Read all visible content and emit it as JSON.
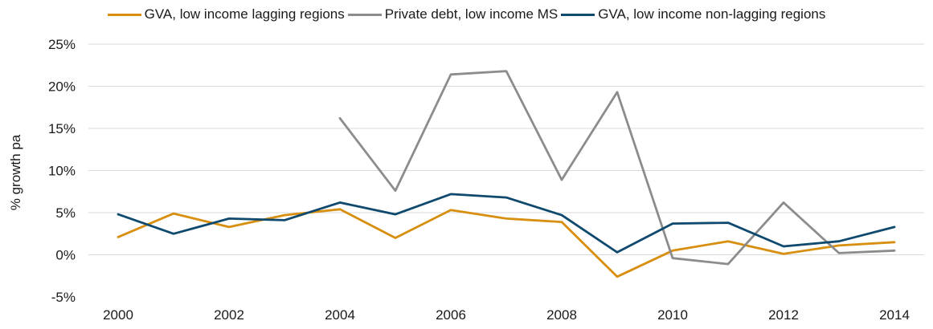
{
  "chart_data": {
    "type": "line",
    "title": "",
    "xlabel": "",
    "ylabel": "% growth pa",
    "x": [
      2000,
      2001,
      2002,
      2003,
      2004,
      2005,
      2006,
      2007,
      2008,
      2009,
      2010,
      2011,
      2012,
      2013,
      2014
    ],
    "x_tick_labels": [
      "2000",
      "2002",
      "2004",
      "2006",
      "2008",
      "2010",
      "2012",
      "2014"
    ],
    "x_tick_values": [
      2000,
      2002,
      2004,
      2006,
      2008,
      2010,
      2012,
      2014
    ],
    "y_tick_labels": [
      "25%",
      "20%",
      "15%",
      "10%",
      "5%",
      "0%",
      "-5%"
    ],
    "y_tick_values": [
      25,
      20,
      15,
      10,
      5,
      0,
      -5
    ],
    "ylim": [
      -5,
      25
    ],
    "xlim": [
      2000,
      2014
    ],
    "grid": "horizontal",
    "legend_position": "top",
    "series": [
      {
        "name": "GVA, low income lagging regions",
        "color": "#D88F10",
        "values": [
          2.1,
          4.9,
          3.3,
          4.7,
          5.4,
          2.0,
          5.3,
          4.3,
          3.9,
          -2.6,
          0.5,
          1.6,
          0.1,
          1.1,
          1.5
        ]
      },
      {
        "name": "Private debt, low income MS",
        "color": "#8C8C8C",
        "values": [
          null,
          null,
          null,
          null,
          16.2,
          7.6,
          21.4,
          21.8,
          8.9,
          19.3,
          -0.4,
          -1.1,
          6.2,
          0.2,
          0.5
        ]
      },
      {
        "name": "GVA, low income non-lagging regions",
        "color": "#0F4A6E",
        "values": [
          4.8,
          2.5,
          4.3,
          4.1,
          6.2,
          4.8,
          7.2,
          6.8,
          4.7,
          0.3,
          3.7,
          3.8,
          1.0,
          1.6,
          3.3
        ]
      }
    ]
  }
}
